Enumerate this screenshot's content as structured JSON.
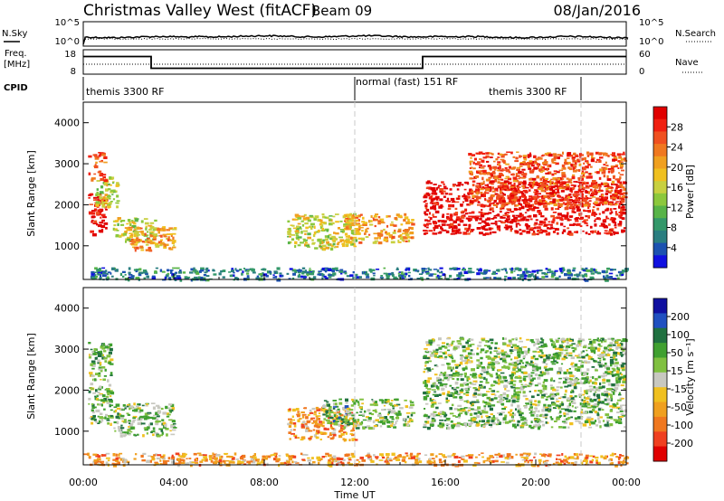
{
  "header": {
    "station": "Christmas Valley West (fitACF)",
    "beam": "Beam 09",
    "date": "08/Jan/2016"
  },
  "noise_panel": {
    "left_label": "N.Sky",
    "left_ticks": [
      "10^5",
      "10^0"
    ],
    "right_ticks": [
      "10^5",
      "10^0"
    ],
    "right_label": "N.Search"
  },
  "freq_panel": {
    "left_label_1": "Freq.",
    "left_label_2": "[MHz]",
    "left_ticks": [
      "18",
      "8"
    ],
    "right_ticks": [
      "60",
      "0"
    ],
    "right_label": "Nave"
  },
  "cpid_panel": {
    "label": "CPID",
    "segments": [
      "themis 3300 RF",
      "normal (fast) 151 RF",
      "themis 3300 RF"
    ]
  },
  "chart_data": [
    {
      "type": "heatmap",
      "name": "power",
      "ylabel": "Slant Range [km]",
      "ylim": [
        180,
        4500
      ],
      "yticks": [
        1000,
        2000,
        3000,
        4000
      ],
      "xlim_hours": [
        0,
        24
      ],
      "colorbar": {
        "label": "Power [dB]",
        "ticks": [
          "28",
          "24",
          "20",
          "16",
          "12",
          "8",
          "4"
        ],
        "colors": [
          "#1010e0",
          "#1c52b0",
          "#2a7e80",
          "#34986a",
          "#58b448",
          "#8cc83c",
          "#c8d040",
          "#f0c020",
          "#f0a020",
          "#f07820",
          "#f05020",
          "#f02010",
          "#e00000"
        ]
      },
      "echo_regions": [
        {
          "t": [
            0.2,
            1.0
          ],
          "r": [
            1300,
            2300
          ],
          "level": "28"
        },
        {
          "t": [
            0.5,
            1.5
          ],
          "r": [
            1900,
            2700
          ],
          "level": "16"
        },
        {
          "t": [
            0.2,
            0.9
          ],
          "r": [
            2600,
            3300
          ],
          "level": "24"
        },
        {
          "t": [
            1.3,
            3.2
          ],
          "r": [
            1100,
            1700
          ],
          "level": "16"
        },
        {
          "t": [
            2.0,
            4.0
          ],
          "r": [
            900,
            1500
          ],
          "level": "20"
        },
        {
          "t": [
            9.0,
            12.0
          ],
          "r": [
            950,
            1800
          ],
          "level": "16"
        },
        {
          "t": [
            11.5,
            14.5
          ],
          "r": [
            1100,
            1800
          ],
          "level": "20"
        },
        {
          "t": [
            15.0,
            23.9
          ],
          "r": [
            1300,
            2600
          ],
          "level": "28"
        },
        {
          "t": [
            17.0,
            23.9
          ],
          "r": [
            2000,
            3300
          ],
          "level": "24"
        },
        {
          "t": [
            0.0,
            24.0
          ],
          "r": [
            190,
            480
          ],
          "level": "8"
        }
      ]
    },
    {
      "type": "heatmap",
      "name": "velocity",
      "ylabel": "Slant Range [km]",
      "xlabel": "Time UT",
      "ylim": [
        180,
        4500
      ],
      "yticks": [
        1000,
        2000,
        3000,
        4000
      ],
      "xlim_hours": [
        0,
        24
      ],
      "xticks": [
        "00:00",
        "04:00",
        "08:00",
        "12:00",
        "16:00",
        "20:00",
        "00:00"
      ],
      "colorbar": {
        "label": "Velocity [m s⁻¹]",
        "ticks": [
          "200",
          "100",
          "50",
          "15",
          "-15",
          "-50",
          "-100",
          "-200"
        ],
        "colors": [
          "#1010a0",
          "#2050c0",
          "#207040",
          "#40a030",
          "#80c040",
          "#c8c8c0",
          "#f0c020",
          "#f0a020",
          "#f07820",
          "#f04020",
          "#e00000"
        ]
      },
      "echo_regions": [
        {
          "t": [
            0.2,
            1.2
          ],
          "r": [
            1200,
            3200
          ],
          "level": "15"
        },
        {
          "t": [
            1.3,
            4.0
          ],
          "r": [
            900,
            1700
          ],
          "level": "15"
        },
        {
          "t": [
            9.0,
            12.0
          ],
          "r": [
            800,
            1600
          ],
          "level": "-50"
        },
        {
          "t": [
            10.5,
            11.6
          ],
          "r": [
            1200,
            1800
          ],
          "level": "50"
        },
        {
          "t": [
            11.5,
            14.5
          ],
          "r": [
            1100,
            1800
          ],
          "level": "15"
        },
        {
          "t": [
            15.0,
            23.9
          ],
          "r": [
            1100,
            3300
          ],
          "level": "15"
        },
        {
          "t": [
            0.0,
            24.0
          ],
          "r": [
            190,
            480
          ],
          "level": "-50"
        }
      ]
    }
  ],
  "cpid_boundaries_hours": [
    12.0,
    22.0
  ],
  "freq_trace": {
    "times": [
      0,
      3,
      3,
      15,
      15,
      24
    ],
    "values": [
      15.5,
      15.5,
      10.5,
      10.5,
      15.5,
      15.5
    ]
  },
  "colors": {
    "ink": "#000000",
    "dashed": "#c8c8c8"
  }
}
